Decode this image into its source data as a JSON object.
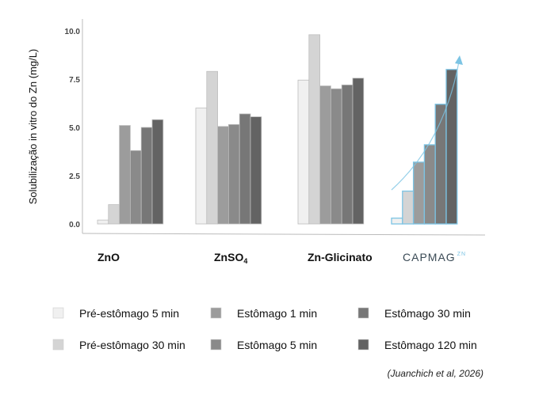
{
  "chart_data": {
    "type": "bar",
    "title": "",
    "xlabel": "",
    "ylabel": "Solubilização in vitro do Zn (mg/L)",
    "ylim": [
      0,
      10
    ],
    "yticks": [
      "0.0",
      "2.5",
      "5.0",
      "7.5",
      "10.0"
    ],
    "grid": false,
    "legend_placement": "bottom",
    "categories": [
      "ZnO",
      "ZnSO4",
      "Zn-Glicinato",
      "CAPMAG ZN"
    ],
    "category_labels": [
      {
        "main": "ZnO",
        "sub": ""
      },
      {
        "main": "ZnSO",
        "sub": "4"
      },
      {
        "main": "Zn-Glicinato",
        "sub": ""
      },
      {
        "main": "CAPMAG",
        "sub": "ZN"
      }
    ],
    "series": [
      {
        "name": "Pré-estômago 5 min",
        "color": "#f0f0f0",
        "values": [
          0.2,
          6.0,
          7.45,
          0.3
        ]
      },
      {
        "name": "Pré-estômago 30 min",
        "color": "#d4d4d4",
        "values": [
          1.0,
          7.9,
          9.8,
          1.7
        ]
      },
      {
        "name": "Estômago 1 min",
        "color": "#9c9c9c",
        "values": [
          5.1,
          5.05,
          7.15,
          3.2
        ]
      },
      {
        "name": "Estômago 5 min",
        "color": "#8a8a8a",
        "values": [
          3.8,
          5.15,
          7.0,
          4.1
        ]
      },
      {
        "name": "Estômago 30 min",
        "color": "#777777",
        "values": [
          5.0,
          5.7,
          7.2,
          6.2
        ]
      },
      {
        "name": "Estômago 120 min",
        "color": "#636363",
        "values": [
          5.4,
          5.55,
          7.55,
          8.0
        ]
      }
    ],
    "highlight_color": "#7cc4e4",
    "source": "(Juanchich et al, 2026)"
  }
}
